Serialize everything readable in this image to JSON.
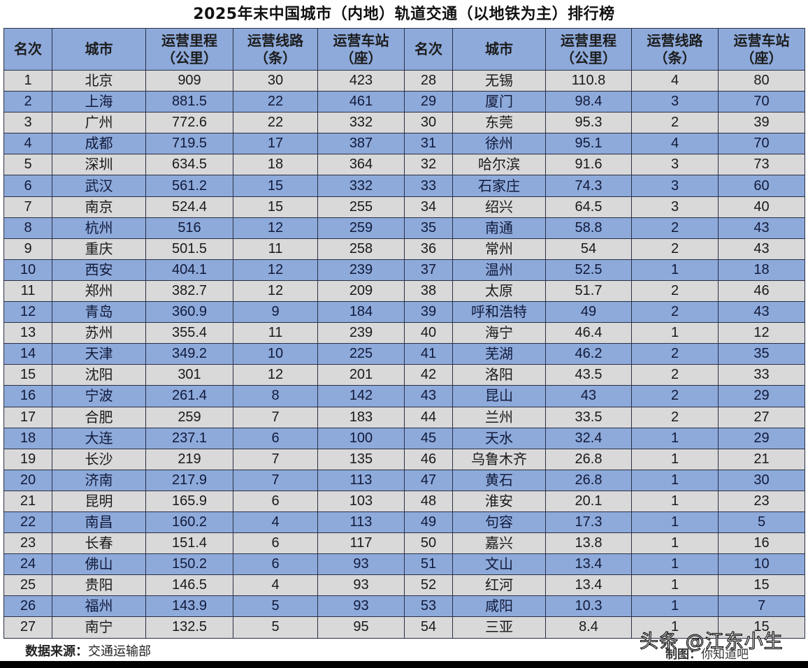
{
  "title": "2025年末中国城市（内地）轨道交通（以地铁为主）排行榜",
  "headers": {
    "rank": "名次",
    "city": "城市",
    "length_line1": "运营里程",
    "length_line2": "（公里）",
    "lines_line1": "运营线路",
    "lines_line2": "（条）",
    "stations_line1": "运营车站",
    "stations_line2": "（座）"
  },
  "rows": [
    {
      "left": {
        "rank": "1",
        "city": "北京",
        "length": "909",
        "lines": "30",
        "stations": "423"
      },
      "right": {
        "rank": "28",
        "city": "无锡",
        "length": "110.8",
        "lines": "4",
        "stations": "80"
      }
    },
    {
      "left": {
        "rank": "2",
        "city": "上海",
        "length": "881.5",
        "lines": "22",
        "stations": "461"
      },
      "right": {
        "rank": "29",
        "city": "厦门",
        "length": "98.4",
        "lines": "3",
        "stations": "70"
      }
    },
    {
      "left": {
        "rank": "3",
        "city": "广州",
        "length": "772.6",
        "lines": "22",
        "stations": "332"
      },
      "right": {
        "rank": "30",
        "city": "东莞",
        "length": "95.3",
        "lines": "2",
        "stations": "39"
      }
    },
    {
      "left": {
        "rank": "4",
        "city": "成都",
        "length": "719.5",
        "lines": "17",
        "stations": "387"
      },
      "right": {
        "rank": "31",
        "city": "徐州",
        "length": "95.1",
        "lines": "4",
        "stations": "70"
      }
    },
    {
      "left": {
        "rank": "5",
        "city": "深圳",
        "length": "634.5",
        "lines": "18",
        "stations": "364"
      },
      "right": {
        "rank": "32",
        "city": "哈尔滨",
        "length": "91.6",
        "lines": "3",
        "stations": "73"
      }
    },
    {
      "left": {
        "rank": "6",
        "city": "武汉",
        "length": "561.2",
        "lines": "15",
        "stations": "332"
      },
      "right": {
        "rank": "33",
        "city": "石家庄",
        "length": "74.3",
        "lines": "3",
        "stations": "60"
      }
    },
    {
      "left": {
        "rank": "7",
        "city": "南京",
        "length": "524.4",
        "lines": "15",
        "stations": "255"
      },
      "right": {
        "rank": "34",
        "city": "绍兴",
        "length": "64.5",
        "lines": "3",
        "stations": "40"
      }
    },
    {
      "left": {
        "rank": "8",
        "city": "杭州",
        "length": "516",
        "lines": "12",
        "stations": "259"
      },
      "right": {
        "rank": "35",
        "city": "南通",
        "length": "58.8",
        "lines": "2",
        "stations": "43"
      }
    },
    {
      "left": {
        "rank": "9",
        "city": "重庆",
        "length": "501.5",
        "lines": "11",
        "stations": "258"
      },
      "right": {
        "rank": "36",
        "city": "常州",
        "length": "54",
        "lines": "2",
        "stations": "43"
      }
    },
    {
      "left": {
        "rank": "10",
        "city": "西安",
        "length": "404.1",
        "lines": "12",
        "stations": "239"
      },
      "right": {
        "rank": "37",
        "city": "温州",
        "length": "52.5",
        "lines": "1",
        "stations": "18"
      }
    },
    {
      "left": {
        "rank": "11",
        "city": "郑州",
        "length": "382.7",
        "lines": "12",
        "stations": "209"
      },
      "right": {
        "rank": "38",
        "city": "太原",
        "length": "51.7",
        "lines": "2",
        "stations": "46"
      }
    },
    {
      "left": {
        "rank": "12",
        "city": "青岛",
        "length": "360.9",
        "lines": "9",
        "stations": "184"
      },
      "right": {
        "rank": "39",
        "city": "呼和浩特",
        "length": "49",
        "lines": "2",
        "stations": "43"
      }
    },
    {
      "left": {
        "rank": "13",
        "city": "苏州",
        "length": "355.4",
        "lines": "11",
        "stations": "239"
      },
      "right": {
        "rank": "40",
        "city": "海宁",
        "length": "46.4",
        "lines": "1",
        "stations": "12"
      }
    },
    {
      "left": {
        "rank": "14",
        "city": "天津",
        "length": "349.2",
        "lines": "10",
        "stations": "225"
      },
      "right": {
        "rank": "41",
        "city": "芜湖",
        "length": "46.2",
        "lines": "2",
        "stations": "35"
      }
    },
    {
      "left": {
        "rank": "15",
        "city": "沈阳",
        "length": "301",
        "lines": "12",
        "stations": "201"
      },
      "right": {
        "rank": "42",
        "city": "洛阳",
        "length": "43.5",
        "lines": "2",
        "stations": "33"
      }
    },
    {
      "left": {
        "rank": "16",
        "city": "宁波",
        "length": "261.4",
        "lines": "8",
        "stations": "142"
      },
      "right": {
        "rank": "43",
        "city": "昆山",
        "length": "43",
        "lines": "2",
        "stations": "29"
      }
    },
    {
      "left": {
        "rank": "17",
        "city": "合肥",
        "length": "259",
        "lines": "7",
        "stations": "183"
      },
      "right": {
        "rank": "44",
        "city": "兰州",
        "length": "33.5",
        "lines": "2",
        "stations": "27"
      }
    },
    {
      "left": {
        "rank": "18",
        "city": "大连",
        "length": "237.1",
        "lines": "6",
        "stations": "100"
      },
      "right": {
        "rank": "45",
        "city": "天水",
        "length": "32.4",
        "lines": "1",
        "stations": "29"
      }
    },
    {
      "left": {
        "rank": "19",
        "city": "长沙",
        "length": "219",
        "lines": "7",
        "stations": "135"
      },
      "right": {
        "rank": "46",
        "city": "乌鲁木齐",
        "length": "26.8",
        "lines": "1",
        "stations": "21"
      }
    },
    {
      "left": {
        "rank": "20",
        "city": "济南",
        "length": "217.9",
        "lines": "7",
        "stations": "113"
      },
      "right": {
        "rank": "47",
        "city": "黄石",
        "length": "26.8",
        "lines": "1",
        "stations": "30"
      }
    },
    {
      "left": {
        "rank": "21",
        "city": "昆明",
        "length": "165.9",
        "lines": "6",
        "stations": "103"
      },
      "right": {
        "rank": "48",
        "city": "淮安",
        "length": "20.1",
        "lines": "1",
        "stations": "23"
      }
    },
    {
      "left": {
        "rank": "22",
        "city": "南昌",
        "length": "160.2",
        "lines": "4",
        "stations": "113"
      },
      "right": {
        "rank": "49",
        "city": "句容",
        "length": "17.3",
        "lines": "1",
        "stations": "5"
      }
    },
    {
      "left": {
        "rank": "23",
        "city": "长春",
        "length": "151.4",
        "lines": "6",
        "stations": "117"
      },
      "right": {
        "rank": "50",
        "city": "嘉兴",
        "length": "13.8",
        "lines": "1",
        "stations": "16"
      }
    },
    {
      "left": {
        "rank": "24",
        "city": "佛山",
        "length": "150.2",
        "lines": "6",
        "stations": "93"
      },
      "right": {
        "rank": "51",
        "city": "文山",
        "length": "13.4",
        "lines": "1",
        "stations": "10"
      }
    },
    {
      "left": {
        "rank": "25",
        "city": "贵阳",
        "length": "146.5",
        "lines": "4",
        "stations": "93"
      },
      "right": {
        "rank": "52",
        "city": "红河",
        "length": "13.4",
        "lines": "1",
        "stations": "15"
      }
    },
    {
      "left": {
        "rank": "26",
        "city": "福州",
        "length": "143.9",
        "lines": "5",
        "stations": "93"
      },
      "right": {
        "rank": "53",
        "city": "咸阳",
        "length": "10.3",
        "lines": "1",
        "stations": "7"
      }
    },
    {
      "left": {
        "rank": "27",
        "city": "南宁",
        "length": "132.5",
        "lines": "5",
        "stations": "95"
      },
      "right": {
        "rank": "54",
        "city": "三亚",
        "length": "8.4",
        "lines": "1",
        "stations": "15"
      }
    }
  ],
  "footer": {
    "source_label": "数据来源：",
    "source_value": "交通运输部",
    "credit_label": "制图：",
    "credit_value": "你知道吧",
    "watermark": "头条 @江东小生"
  },
  "colors": {
    "header_bg": "#8eaadb",
    "row_odd_bg": "#d9d9d9",
    "row_even_bg": "#8eaadb",
    "border": "#2a2f45"
  }
}
